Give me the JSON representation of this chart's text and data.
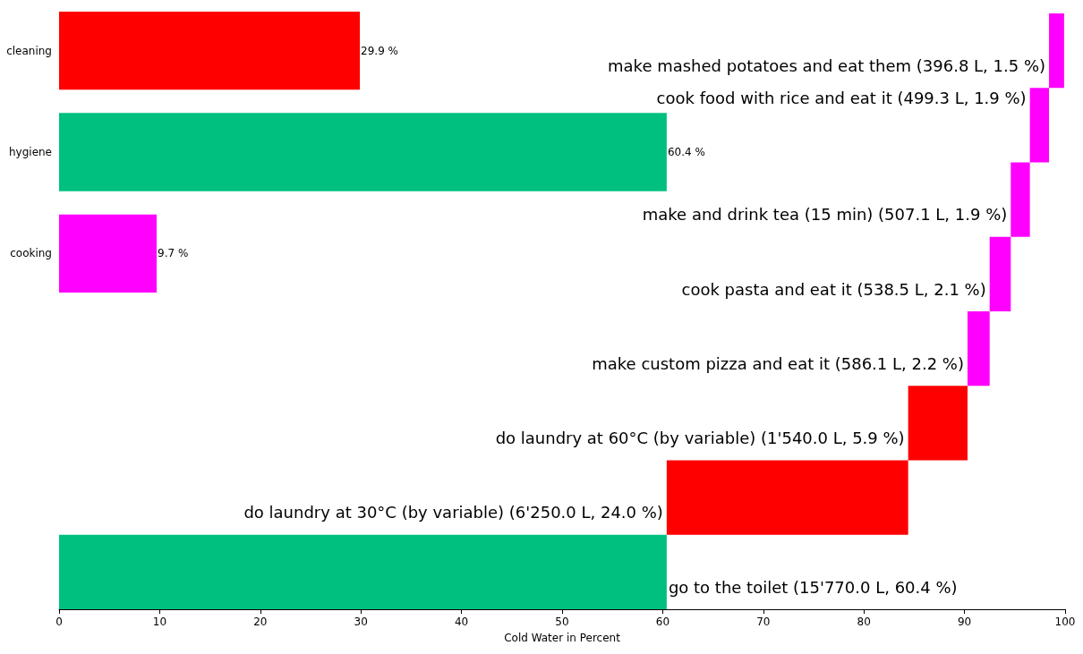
{
  "chart_data": [
    {
      "type": "bar",
      "orientation": "horizontal",
      "categories": [
        "cleaning",
        "hygiene",
        "cooking"
      ],
      "values": [
        29.9,
        60.4,
        9.7
      ],
      "colors": [
        "#ff0000",
        "#00c07f",
        "#ff00ff"
      ],
      "xlim": [
        0,
        100
      ],
      "value_labels": [
        "29.9 %",
        "60.4 %",
        "9.7 %"
      ],
      "tick_labels": "y",
      "grid": false
    },
    {
      "type": "bar",
      "orientation": "horizontal",
      "xlabel": "Cold Water in Percent",
      "categories": [
        null,
        null,
        null,
        null,
        null,
        null,
        null,
        null
      ],
      "values": [
        1.5,
        1.9,
        1.9,
        2.1,
        2.2,
        5.9,
        24.0,
        60.4
      ],
      "base": [
        98.4,
        96.5,
        94.6,
        92.5,
        90.3,
        84.4,
        60.4,
        0
      ],
      "colors": [
        "#ff00ff",
        "#ff00ff",
        "#ff00ff",
        "#ff00ff",
        "#ff00ff",
        "#ff0000",
        "#ff0000",
        "#00c07f"
      ],
      "value_labels": [
        "make mashed potatoes and eat them (396.8 L, 1.5 %)",
        "cook food with rice and eat it (499.3 L, 1.9 %)",
        "make and drink tea (15 min) (507.1 L, 1.9 %)",
        "cook pasta and eat it (538.5 L, 2.1 %)",
        "make custom pizza and eat it (586.1 L, 2.2 %)",
        "do laundry at 60°C (by variable) (1'540.0 L, 5.9 %)",
        "do laundry at 30°C (by variable) (6'250.0 L, 24.0 %)",
        "go to the toilet (15'770.0 L, 60.4 %)"
      ],
      "xlim": [
        0,
        100
      ],
      "xticks": [
        0,
        10,
        20,
        30,
        40,
        50,
        60,
        70,
        80,
        90,
        100
      ],
      "tick_labels": "x",
      "grid": false
    }
  ]
}
